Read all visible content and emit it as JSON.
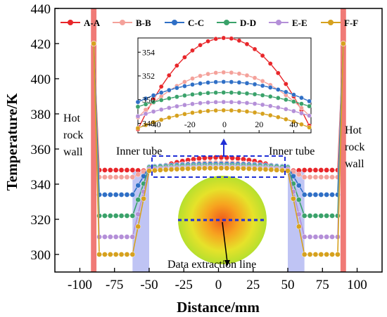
{
  "chart_data": {
    "type": "line",
    "xlabel": "Distance/mm",
    "ylabel": "Temperature/K",
    "xlim": [
      -118,
      118
    ],
    "ylim": [
      290,
      440
    ],
    "x_ticks": [
      -100,
      -75,
      -50,
      -25,
      0,
      25,
      50,
      75,
      100
    ],
    "y_ticks": [
      300,
      320,
      340,
      360,
      380,
      400,
      420,
      440
    ],
    "legend_placement": "top",
    "series": [
      {
        "name": "A-A",
        "color": "#e8262a",
        "plateau": 348,
        "center": 355.2,
        "edge": 347.5
      },
      {
        "name": "B-B",
        "color": "#f4a19a",
        "plateau": 344,
        "center": 352.3,
        "edge": 348.5
      },
      {
        "name": "C-C",
        "color": "#2f6fc6",
        "plateau": 334,
        "center": 351.5,
        "edge": 349.8
      },
      {
        "name": "D-D",
        "color": "#3aa26a",
        "plateau": 322,
        "center": 350.6,
        "edge": 349.4
      },
      {
        "name": "E-E",
        "color": "#b48fd8",
        "plateau": 310,
        "center": 349.8,
        "edge": 348.6
      },
      {
        "name": "F-F",
        "color": "#d6a11e",
        "plateau": 300,
        "center": 349.1,
        "edge": 347.6
      }
    ],
    "inset": {
      "xlim": [
        -50,
        50
      ],
      "ylim": [
        347.2,
        355.2
      ],
      "x_ticks": [
        -40,
        -20,
        0,
        20,
        40
      ],
      "y_ticks": [
        348,
        350,
        352,
        354
      ]
    },
    "regions": {
      "hot_rock_wall_x": [
        -92,
        -88,
        88,
        92
      ],
      "inner_tube_x": [
        -62,
        -50,
        50,
        62
      ]
    }
  },
  "annotations": {
    "hot_rock_left": [
      "Hot",
      "rock",
      "wall"
    ],
    "hot_rock_right": [
      "Hot",
      "rock",
      "wall"
    ],
    "inner_tube_left": "Inner tube",
    "inner_tube_right": "Inner tube",
    "data_line": "Data extraction line"
  },
  "colors": {
    "hot_wall": "#f07a76",
    "inner_tube": "#aab0f0",
    "dashed_box": "#1f2fd6"
  }
}
